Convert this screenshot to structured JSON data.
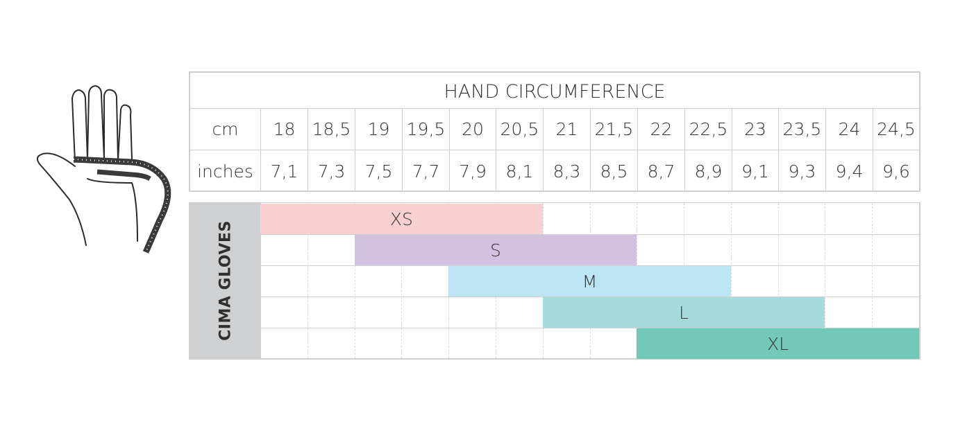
{
  "title": "HAND CIRCUMFERENCE",
  "rows": [
    {
      "unit": "cm",
      "values": [
        "18",
        "18,5",
        "19",
        "19,5",
        "20",
        "20,5",
        "21",
        "21,5",
        "22",
        "22,5",
        "23",
        "23,5",
        "24",
        "24,5"
      ]
    },
    {
      "unit": "inches",
      "values": [
        "7,1",
        "7,3",
        "7,5",
        "7,7",
        "7,9",
        "8,1",
        "8,3",
        "8,5",
        "8,7",
        "8,9",
        "9,1",
        "9,3",
        "9,4",
        "9,6"
      ]
    }
  ],
  "side_label": "CIMA GLOVES",
  "chart_data": {
    "type": "bar",
    "orientation": "horizontal-range",
    "x_unit": "cm",
    "x": [
      18,
      18.5,
      19,
      19.5,
      20,
      20.5,
      21,
      21.5,
      22,
      22.5,
      23,
      23.5,
      24,
      24.5
    ],
    "series": [
      {
        "name": "XS",
        "start_cm": 18,
        "end_cm": 20.5,
        "color": "#f8d0d1"
      },
      {
        "name": "S",
        "start_cm": 19,
        "end_cm": 21.5,
        "color": "#d3c1e0"
      },
      {
        "name": "M",
        "start_cm": 20,
        "end_cm": 22.5,
        "color": "#bde4f5"
      },
      {
        "name": "L",
        "start_cm": 21,
        "end_cm": 23.5,
        "color": "#a6dbdb"
      },
      {
        "name": "XL",
        "start_cm": 22,
        "end_cm": 24.5,
        "color": "#71c9b6"
      }
    ],
    "grid": true
  },
  "icons": {
    "hand": "hand-measure-icon"
  }
}
